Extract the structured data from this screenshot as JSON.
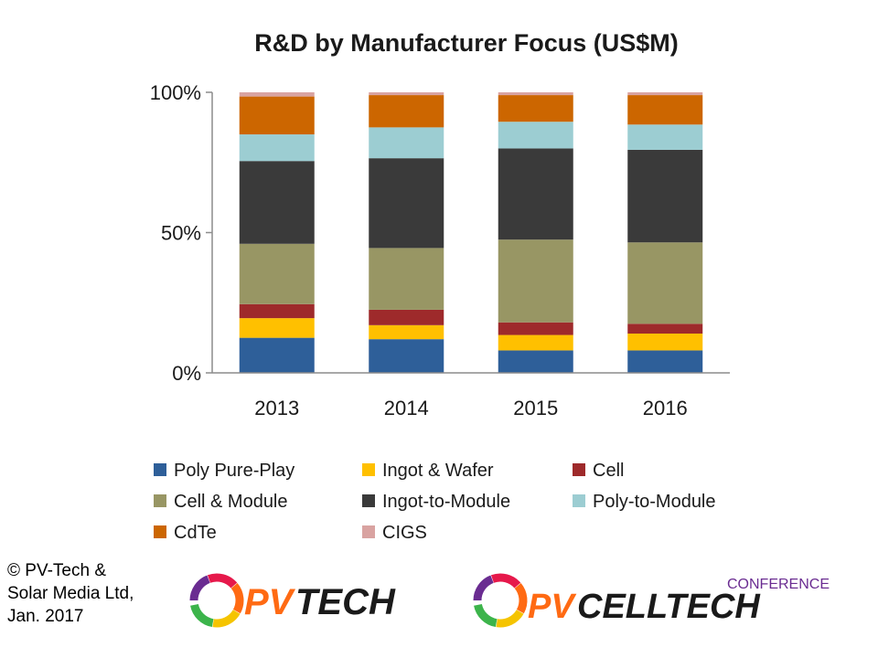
{
  "chart_data": {
    "type": "bar",
    "stacked": true,
    "normalized": true,
    "title": "R&D by Manufacturer Focus (US$M)",
    "xlabel": "",
    "ylabel": "",
    "categories": [
      "2013",
      "2014",
      "2015",
      "2016"
    ],
    "ylim": [
      0,
      100
    ],
    "y_ticks": [
      "0%",
      "50%",
      "100%"
    ],
    "y_tick_values": [
      0,
      50,
      100
    ],
    "grid": false,
    "legend_position": "bottom",
    "series": [
      {
        "name": "Poly Pure-Play",
        "color": "#2e5f99",
        "values": [
          12.5,
          12,
          8,
          8
        ]
      },
      {
        "name": "Ingot & Wafer",
        "color": "#ffc000",
        "values": [
          7,
          5,
          5.5,
          6
        ]
      },
      {
        "name": "Cell",
        "color": "#9e2a2b",
        "values": [
          5,
          5.5,
          4.5,
          3.5
        ]
      },
      {
        "name": "Cell & Module",
        "color": "#989664",
        "values": [
          21.5,
          22,
          29.5,
          29
        ]
      },
      {
        "name": "Ingot-to-Module",
        "color": "#3a3a3a",
        "values": [
          29.5,
          32,
          32.5,
          33
        ]
      },
      {
        "name": "Poly-to-Module",
        "color": "#9ccdd2",
        "values": [
          9.5,
          11,
          9.5,
          9
        ]
      },
      {
        "name": "CdTe",
        "color": "#cc6600",
        "values": [
          13.5,
          11.5,
          9.5,
          10.5
        ]
      },
      {
        "name": "CIGS",
        "color": "#d9a3a1",
        "values": [
          1.5,
          1,
          1,
          1
        ]
      }
    ]
  },
  "footer": {
    "line1": "© PV-Tech &",
    "line2": "Solar Media Ltd,",
    "line3": "Jan. 2017"
  },
  "logos": {
    "pvtech": {
      "text_left": "PV",
      "text_right": "TECH"
    },
    "pvcelltech": {
      "text_top": "CONFERENCE",
      "text_left": "PV",
      "text_right": "CELLTECH"
    }
  },
  "colors": {
    "logo_orange": "#ff6a13",
    "logo_dark": "#1a1a1a",
    "logo_purple": "#6a2c91",
    "axis": "#8c8c8c"
  }
}
